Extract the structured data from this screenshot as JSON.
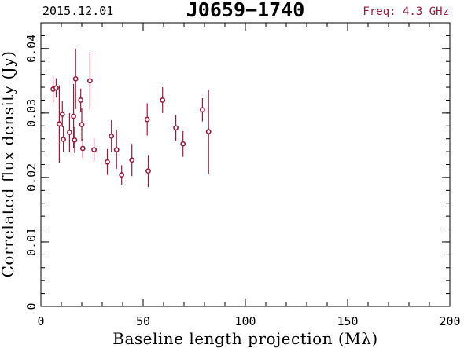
{
  "header": {
    "date": "2015.12.01",
    "title": "J0659−1740",
    "freq": "Freq: 4.3 GHz"
  },
  "colors": {
    "data": "#9b1b3b",
    "axes": "#000000"
  },
  "chart_data": {
    "type": "scatter",
    "title": "J0659−1740",
    "xlabel": "Baseline length projection (Mλ)",
    "ylabel": "Correlated flux density (Jy)",
    "xlim": [
      0,
      200
    ],
    "ylim": [
      0,
      0.044
    ],
    "x_ticks": [
      0,
      50,
      100,
      150,
      200
    ],
    "x_tick_labels": [
      "0",
      "50",
      "100",
      "150",
      "200"
    ],
    "y_ticks": [
      0,
      0.01,
      0.02,
      0.03,
      0.04
    ],
    "y_tick_labels": [
      "0",
      "0.01",
      "0.02",
      "0.03",
      "0.04"
    ],
    "x_minor_step": 10,
    "y_minor_step": 0.002,
    "grid": false,
    "points": [
      {
        "x": 6.0,
        "y": 0.0337,
        "err": 0.002
      },
      {
        "x": 7.5,
        "y": 0.0339,
        "err": 0.0015
      },
      {
        "x": 9.0,
        "y": 0.0283,
        "err": 0.006
      },
      {
        "x": 10.5,
        "y": 0.0298,
        "err": 0.002
      },
      {
        "x": 11.0,
        "y": 0.0259,
        "err": 0.002
      },
      {
        "x": 14.0,
        "y": 0.027,
        "err": 0.003
      },
      {
        "x": 16.0,
        "y": 0.0295,
        "err": 0.005
      },
      {
        "x": 16.5,
        "y": 0.0258,
        "err": 0.002
      },
      {
        "x": 17.0,
        "y": 0.0353,
        "err": 0.0047
      },
      {
        "x": 19.5,
        "y": 0.032,
        "err": 0.0018
      },
      {
        "x": 20.0,
        "y": 0.0282,
        "err": 0.0025
      },
      {
        "x": 20.5,
        "y": 0.0245,
        "err": 0.0015
      },
      {
        "x": 24.0,
        "y": 0.035,
        "err": 0.0045
      },
      {
        "x": 26.0,
        "y": 0.0243,
        "err": 0.0018
      },
      {
        "x": 32.5,
        "y": 0.0224,
        "err": 0.002
      },
      {
        "x": 34.5,
        "y": 0.0264,
        "err": 0.0025
      },
      {
        "x": 37.0,
        "y": 0.0243,
        "err": 0.003
      },
      {
        "x": 39.5,
        "y": 0.0204,
        "err": 0.0015
      },
      {
        "x": 44.5,
        "y": 0.0227,
        "err": 0.0025
      },
      {
        "x": 52.0,
        "y": 0.029,
        "err": 0.0025
      },
      {
        "x": 52.5,
        "y": 0.021,
        "err": 0.0025
      },
      {
        "x": 59.5,
        "y": 0.032,
        "err": 0.002
      },
      {
        "x": 66.0,
        "y": 0.0277,
        "err": 0.002
      },
      {
        "x": 69.5,
        "y": 0.0252,
        "err": 0.002
      },
      {
        "x": 79.0,
        "y": 0.0305,
        "err": 0.0018
      },
      {
        "x": 82.0,
        "y": 0.0271,
        "err": 0.0065
      }
    ]
  }
}
